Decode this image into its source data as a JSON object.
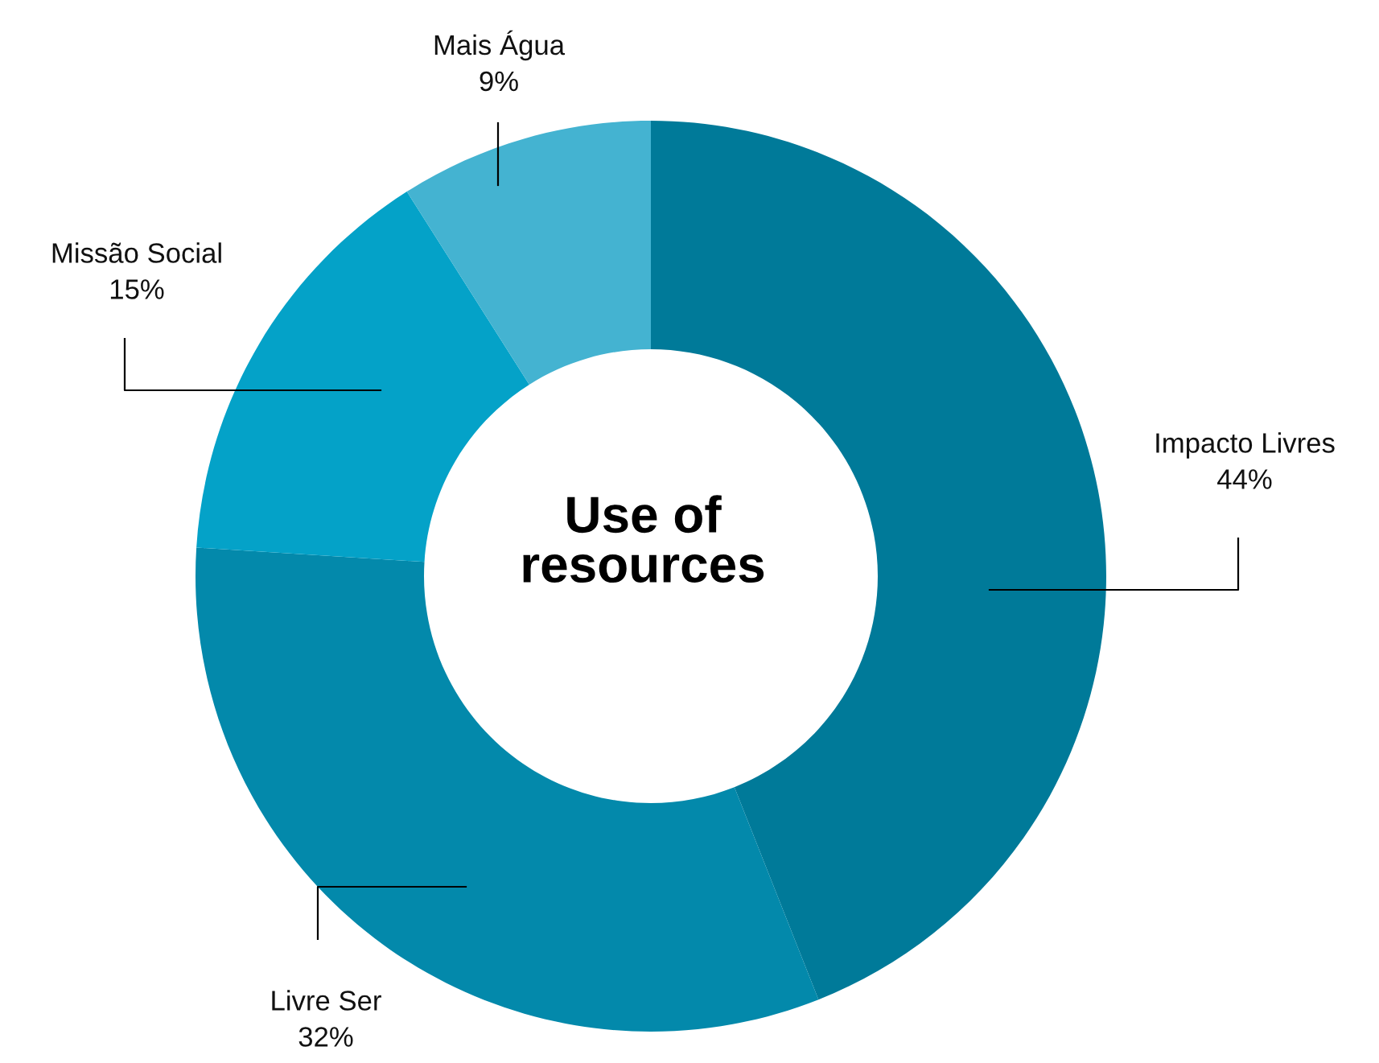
{
  "chart_data": {
    "type": "donut",
    "title": "Use of resources",
    "categories": [
      "Impacto Livres",
      "Livre Ser",
      "Missão Social",
      "Mais Água"
    ],
    "values": [
      44,
      32,
      15,
      9
    ],
    "value_labels": [
      "44%",
      "32%",
      "15%",
      "9%"
    ],
    "colors": [
      "#007a99",
      "#0389ab",
      "#04a2c8",
      "#44b3d1"
    ],
    "legend": false
  }
}
